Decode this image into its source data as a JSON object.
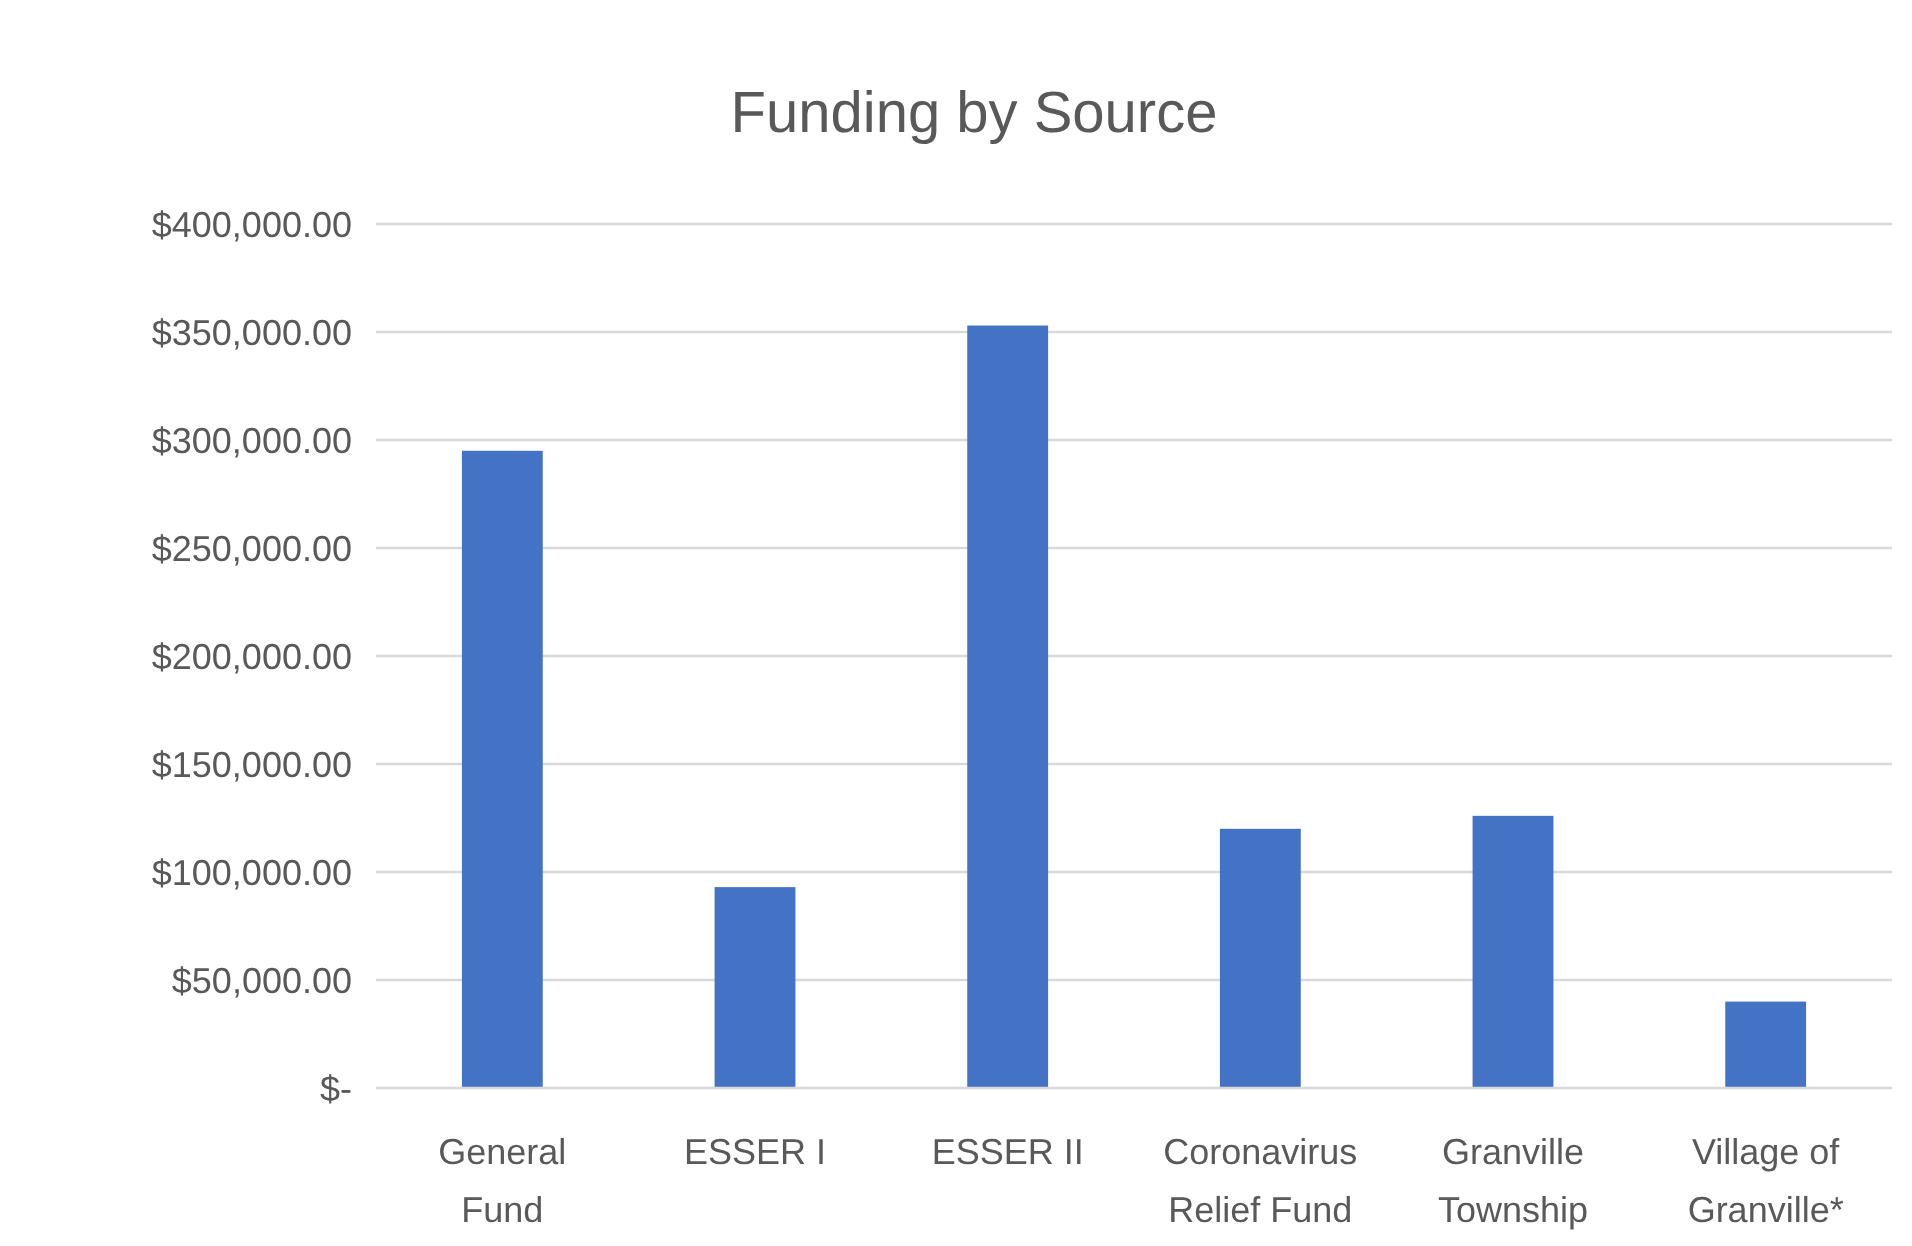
{
  "chart_data": {
    "type": "bar",
    "title": "Funding by Source",
    "categories": [
      "General Fund",
      "ESSER I",
      "ESSER II",
      "Coronavirus Relief Fund",
      "Granville Township",
      "Village of Granville*"
    ],
    "values": [
      295000,
      93000,
      353000,
      120000,
      126000,
      40000
    ],
    "color": "#4472c4",
    "ylim": [
      0,
      400000
    ],
    "yticks": [
      {
        "value": 0,
        "label": "$-"
      },
      {
        "value": 50000,
        "label": "$50,000.00"
      },
      {
        "value": 100000,
        "label": "$100,000.00"
      },
      {
        "value": 150000,
        "label": "$150,000.00"
      },
      {
        "value": 200000,
        "label": "$200,000.00"
      },
      {
        "value": 250000,
        "label": "$250,000.00"
      },
      {
        "value": 300000,
        "label": "$300,000.00"
      },
      {
        "value": 350000,
        "label": "$350,000.00"
      },
      {
        "value": 400000,
        "label": "$400,000.00"
      }
    ],
    "grid": "y"
  }
}
